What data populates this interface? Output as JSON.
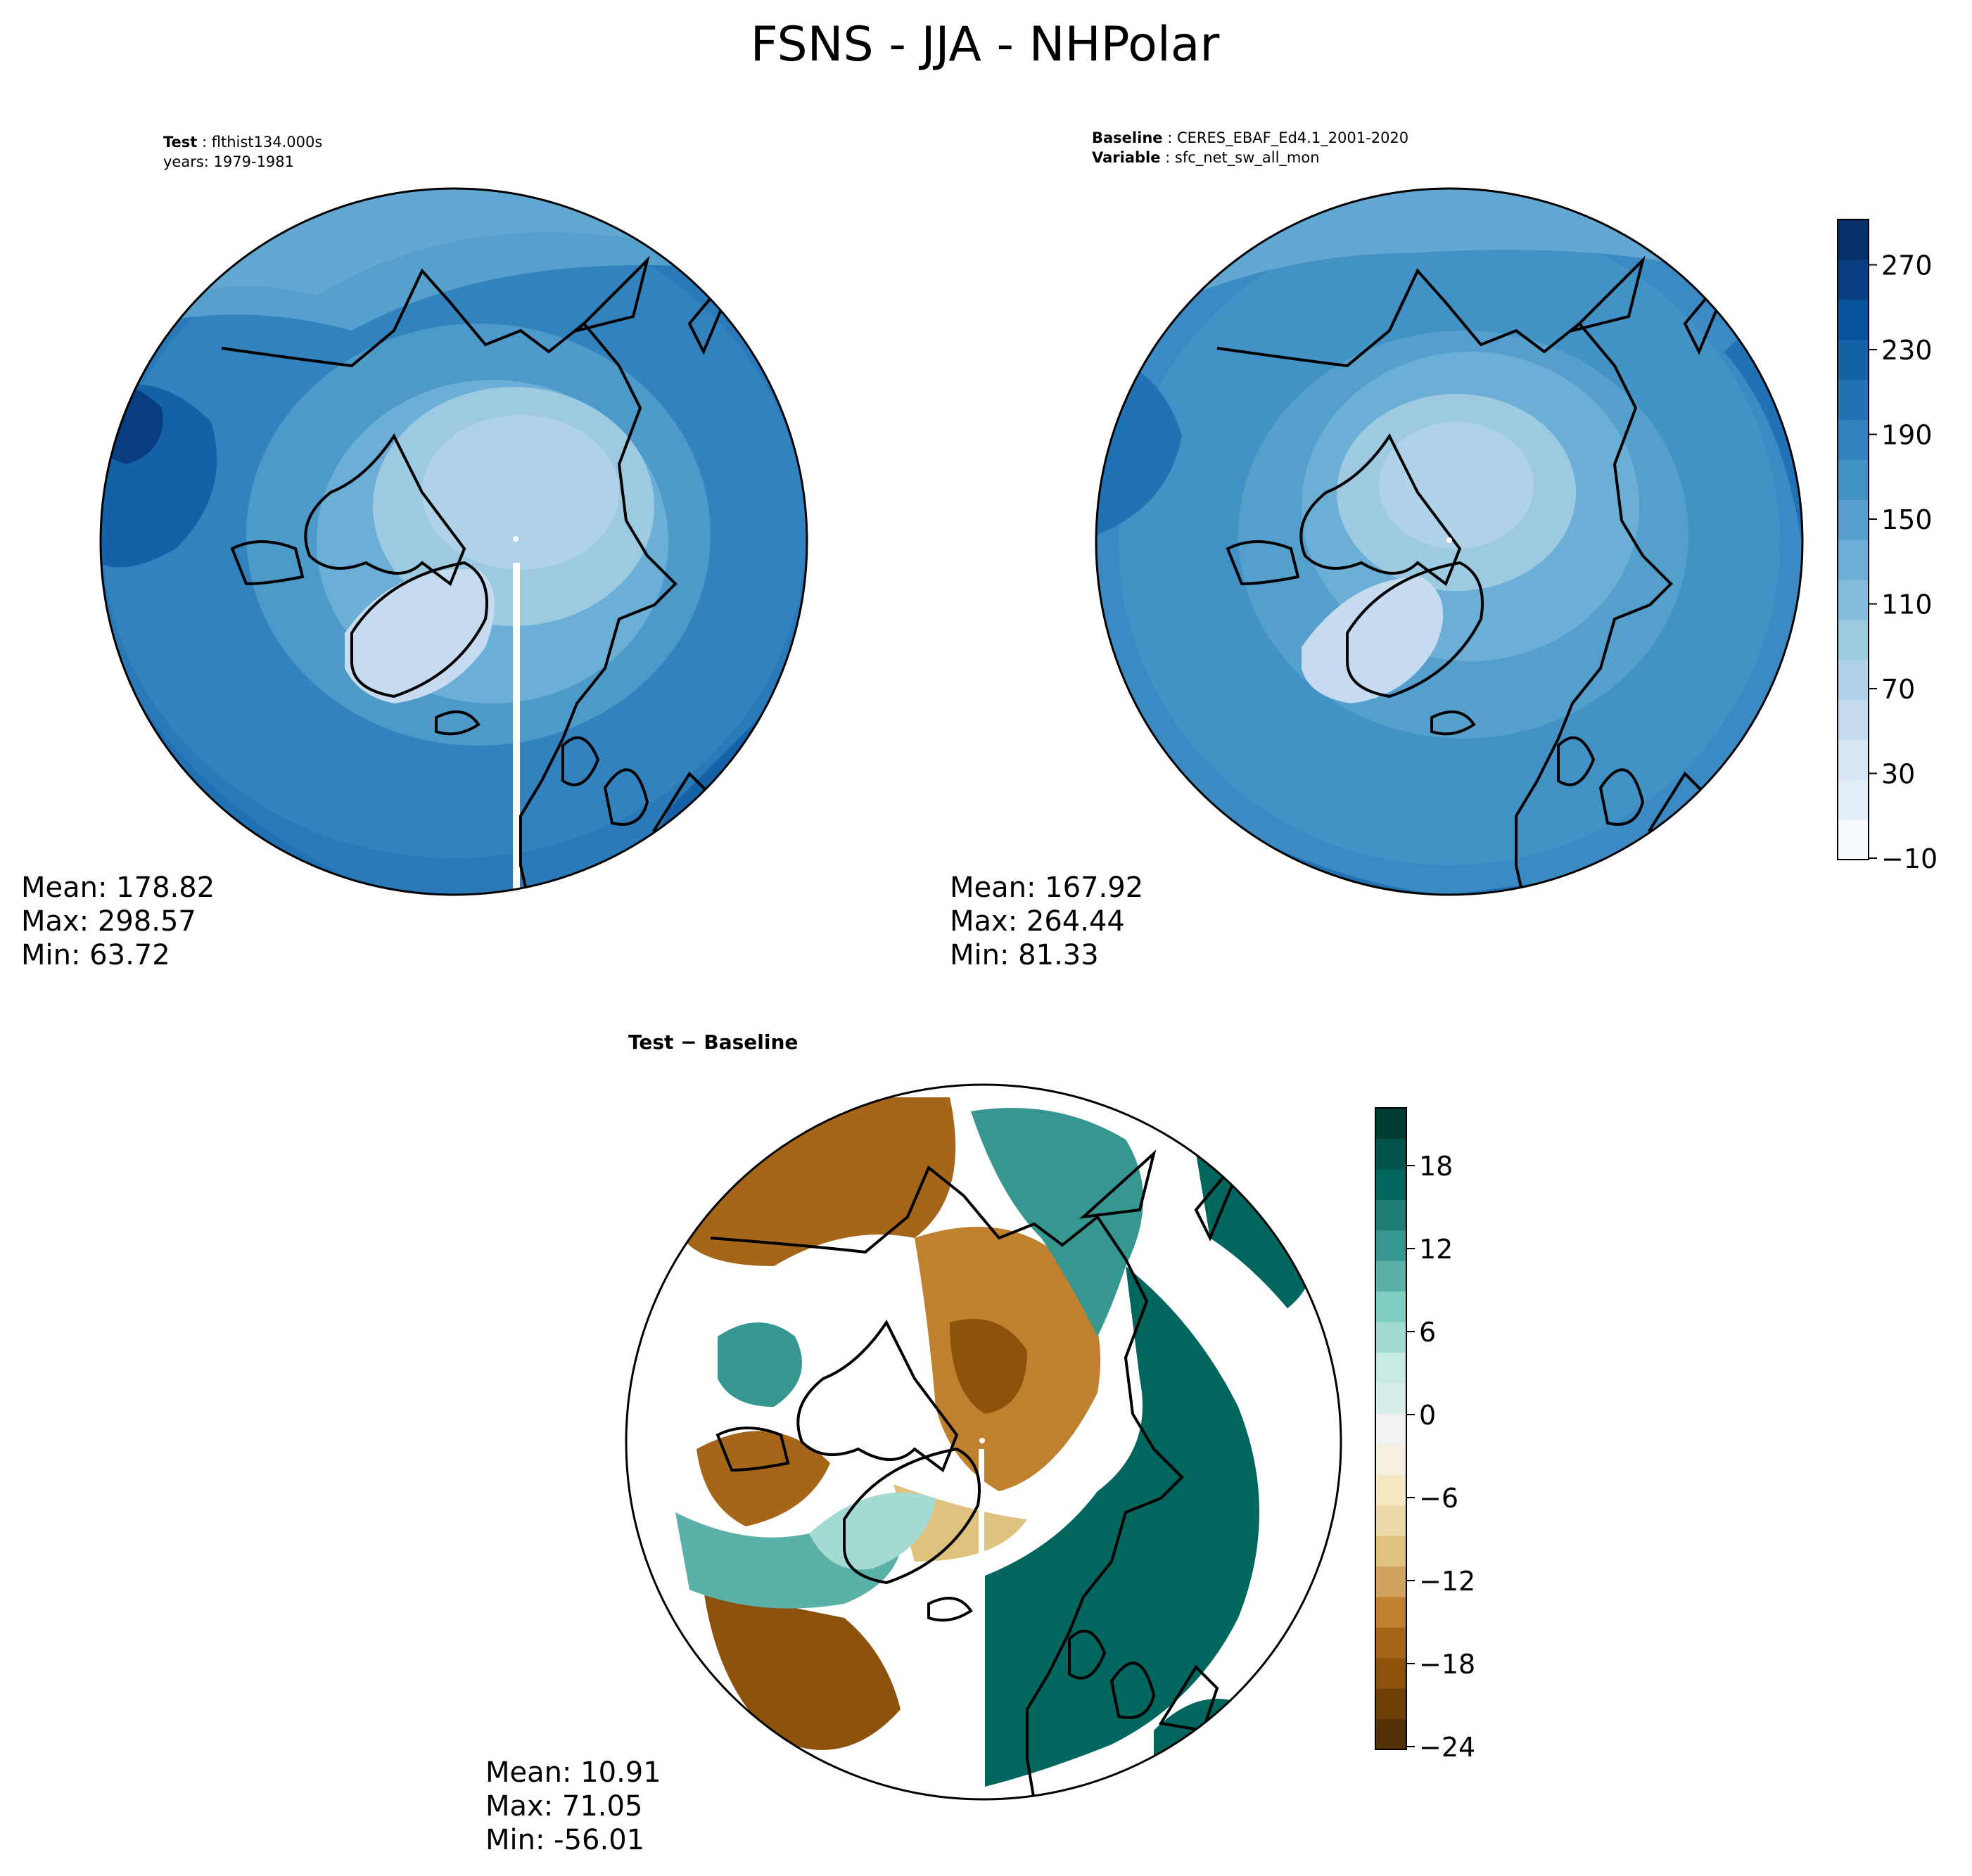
{
  "figure": {
    "title": "FSNS - JJA - NHPolar"
  },
  "test_panel": {
    "label": "Test",
    "name": "flthist134.000s",
    "years": "years: 1979-1981",
    "mean": "Mean: 178.82",
    "max": "Max: 298.57",
    "min": "Min: 63.72"
  },
  "baseline_panel": {
    "label": "Baseline",
    "name": "CERES_EBAF_Ed4.1_2001-2020",
    "variable_label": "Variable",
    "variable": "sfc_net_sw_all_mon",
    "mean": "Mean: 167.92",
    "max": "Max: 264.44",
    "min": "Min: 81.33"
  },
  "diff_panel": {
    "title": "Test − Baseline",
    "mean": "Mean: 10.91",
    "max": "Max: 71.05",
    "min": "Min: -56.01"
  },
  "colorbar_main": {
    "ticks": [
      "−10",
      "30",
      "70",
      "110",
      "150",
      "190",
      "230",
      "270"
    ],
    "range": [
      -10,
      290
    ],
    "colormap": "Blues",
    "colors": [
      "#f7fbff",
      "#e3eef9",
      "#d6e6f4",
      "#c6dbef",
      "#b0d2e8",
      "#9ecae1",
      "#84bcdb",
      "#6baed6",
      "#559fcd",
      "#4292c6",
      "#3282be",
      "#2171b5",
      "#1461a8",
      "#08519c",
      "#083d7f",
      "#08306b"
    ]
  },
  "colorbar_diff": {
    "ticks": [
      "−24",
      "−18",
      "−12",
      "−6",
      "0",
      "6",
      "12",
      "18"
    ],
    "range": [
      -24,
      21
    ],
    "colormap": "BrBG",
    "colors": [
      "#543005",
      "#6f3f08",
      "#8c510a",
      "#a6661a",
      "#bf812d",
      "#d1a35e",
      "#dfc27d",
      "#ecd9a8",
      "#f6e8c3",
      "#f5f0e1",
      "#f0f3f2",
      "#d7eeeb",
      "#c7eae5",
      "#a3dbd2",
      "#80cdc1",
      "#5bb1a8",
      "#35978f",
      "#1f7f77",
      "#01665e",
      "#00544c",
      "#003c30"
    ]
  }
}
